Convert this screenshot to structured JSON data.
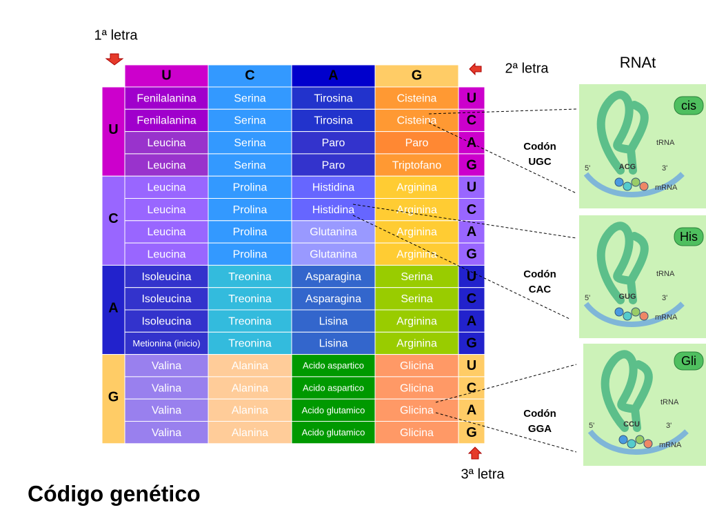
{
  "labels": {
    "first_letter": "1ª letra",
    "second_letter": "2ª letra",
    "third_letter": "3ª letra",
    "rnat": "RNAt",
    "title": "Código genético"
  },
  "table": {
    "columns": [
      "U",
      "C",
      "A",
      "G"
    ],
    "groups": [
      "U",
      "C",
      "A",
      "G"
    ],
    "third": [
      "U",
      "C",
      "A",
      "G",
      "U",
      "C",
      "A",
      "G",
      "U",
      "C",
      "A",
      "G",
      "U",
      "C",
      "A",
      "G"
    ],
    "rows": [
      [
        "Fenilalanina",
        "Serina",
        "Tirosina",
        "Cisteina"
      ],
      [
        "Fenilalanina",
        "Serina",
        "Tirosina",
        "Cisteina"
      ],
      [
        "Leucina",
        "Serina",
        "Paro",
        "Paro"
      ],
      [
        "Leucina",
        "Serina",
        "Paro",
        "Triptofano"
      ],
      [
        "Leucina",
        "Prolina",
        "Histidina",
        "Arginina"
      ],
      [
        "Leucina",
        "Prolina",
        "Histidina",
        "Arginina"
      ],
      [
        "Leucina",
        "Prolina",
        "Glutanina",
        "Arginina"
      ],
      [
        "Leucina",
        "Prolina",
        "Glutanina",
        "Arginina"
      ],
      [
        "Isoleucina",
        "Treonina",
        "Asparagina",
        "Serina"
      ],
      [
        "Isoleucina",
        "Treonina",
        "Asparagina",
        "Serina"
      ],
      [
        "Isoleucina",
        "Treonina",
        "Lisina",
        "Arginina"
      ],
      [
        "Metionina (inicio)",
        "Treonina",
        "Lisina",
        "Arginina"
      ],
      [
        "Valina",
        "Alanina",
        "Acido aspartico",
        "Glicina"
      ],
      [
        "Valina",
        "Alanina",
        "Acido aspartico",
        "Glicina"
      ],
      [
        "Valina",
        "Alanina",
        "Acido glutamico",
        "Glicina"
      ],
      [
        "Valina",
        "Alanina",
        "Acido glutamico",
        "Glicina"
      ]
    ]
  },
  "codons": [
    {
      "label": "Codón",
      "codon": "UGC"
    },
    {
      "label": "Codón",
      "codon": "CAC"
    },
    {
      "label": "Codón",
      "codon": "GGA"
    }
  ],
  "trna": [
    {
      "amino": "cis",
      "anticodon": "ACG",
      "trna": "tRNA",
      "mrna": "mRNA",
      "end5": "5'",
      "end3": "3'"
    },
    {
      "amino": "His",
      "anticodon": "GUG",
      "trna": "tRNA",
      "mrna": "mRNA",
      "end5": "5'",
      "end3": "3'"
    },
    {
      "amino": "Gli",
      "anticodon": "CCU",
      "trna": "tRNA",
      "mrna": "mRNA",
      "end5": "5'",
      "end3": "3'"
    }
  ]
}
